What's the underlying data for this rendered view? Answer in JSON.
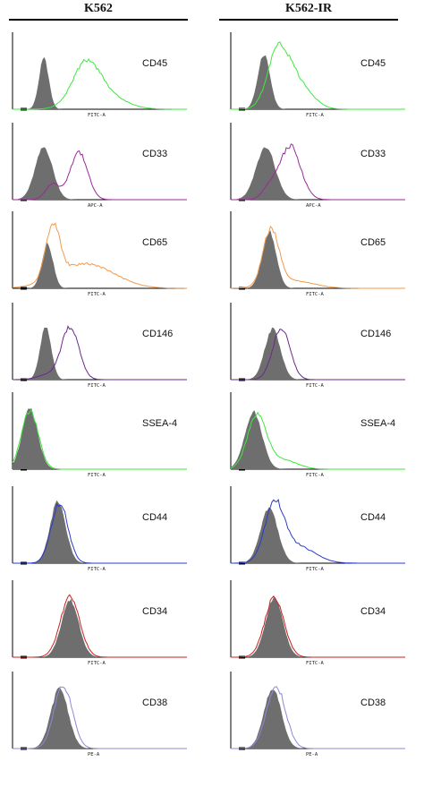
{
  "columns": [
    {
      "label": "K562"
    },
    {
      "label": "K562-IR"
    }
  ],
  "colors": {
    "filled": "#6e6e6e",
    "green": "#3ee83e",
    "magenta": "#9a2a9a",
    "orange": "#f39a4a",
    "purple": "#6a2a8c",
    "blue": "#2b3bc8",
    "red": "#c8201c",
    "lightblue": "#8a8ad8"
  },
  "chart_data": [
    {
      "type": "area",
      "panel": "K562",
      "marker": "CD45",
      "xlabel": "FITC-A",
      "color": "green",
      "filled": {
        "mu": 0.18,
        "sd": 0.028,
        "amp": 0.66
      },
      "overlay": [
        {
          "mu": 0.42,
          "sd": 0.075,
          "amp": 0.46
        },
        {
          "mu": 0.5,
          "sd": 0.12,
          "amp": 0.22
        }
      ]
    },
    {
      "type": "area",
      "panel": "K562",
      "marker": "CD33",
      "xlabel": "APC-A",
      "color": "magenta",
      "filled": {
        "mu": 0.18,
        "sd": 0.05,
        "amp": 0.68
      },
      "overlay": [
        {
          "mu": 0.23,
          "sd": 0.04,
          "amp": 0.2
        },
        {
          "mu": 0.38,
          "sd": 0.05,
          "amp": 0.62
        }
      ]
    },
    {
      "type": "area",
      "panel": "K562",
      "marker": "CD65",
      "xlabel": "FITC-A",
      "color": "orange",
      "filled": {
        "mu": 0.2,
        "sd": 0.032,
        "amp": 0.58
      },
      "overlay": [
        {
          "mu": 0.23,
          "sd": 0.04,
          "amp": 0.7
        },
        {
          "mu": 0.42,
          "sd": 0.16,
          "amp": 0.32
        }
      ]
    },
    {
      "type": "area",
      "panel": "K562",
      "marker": "CD146",
      "xlabel": "FITC-A",
      "color": "purple",
      "filled": {
        "mu": 0.19,
        "sd": 0.032,
        "amp": 0.68
      },
      "overlay": [
        {
          "mu": 0.33,
          "sd": 0.05,
          "amp": 0.68
        },
        {
          "mu": 0.2,
          "sd": 0.06,
          "amp": 0.06
        }
      ]
    },
    {
      "type": "area",
      "panel": "K562",
      "marker": "SSEA-4",
      "xlabel": "FITC-A",
      "color": "green",
      "filled": {
        "mu": 0.1,
        "sd": 0.045,
        "amp": 0.78
      },
      "overlay": [
        {
          "mu": 0.1,
          "sd": 0.048,
          "amp": 0.76
        }
      ]
    },
    {
      "type": "area",
      "panel": "K562",
      "marker": "CD44",
      "xlabel": "FITC-A",
      "color": "blue",
      "filled": {
        "mu": 0.26,
        "sd": 0.045,
        "amp": 0.8
      },
      "overlay": [
        {
          "mu": 0.27,
          "sd": 0.048,
          "amp": 0.78
        }
      ]
    },
    {
      "type": "area",
      "panel": "K562",
      "marker": "CD34",
      "xlabel": "FITC-A",
      "color": "red",
      "filled": {
        "mu": 0.33,
        "sd": 0.05,
        "amp": 0.74
      },
      "overlay": [
        {
          "mu": 0.33,
          "sd": 0.055,
          "amp": 0.8
        }
      ]
    },
    {
      "type": "area",
      "panel": "K562",
      "marker": "CD38",
      "xlabel": "PE-A",
      "color": "lightblue",
      "filled": {
        "mu": 0.27,
        "sd": 0.05,
        "amp": 0.78
      },
      "overlay": [
        {
          "mu": 0.29,
          "sd": 0.052,
          "amp": 0.82
        }
      ]
    },
    {
      "type": "area",
      "panel": "K562-IR",
      "marker": "CD45",
      "xlabel": "FITC-A",
      "color": "green",
      "filled": {
        "mu": 0.19,
        "sd": 0.035,
        "amp": 0.72
      },
      "overlay": [
        {
          "mu": 0.27,
          "sd": 0.06,
          "amp": 0.7
        },
        {
          "mu": 0.38,
          "sd": 0.08,
          "amp": 0.35
        }
      ]
    },
    {
      "type": "area",
      "panel": "K562-IR",
      "marker": "CD33",
      "xlabel": "APC-A",
      "color": "magenta",
      "filled": {
        "mu": 0.2,
        "sd": 0.055,
        "amp": 0.68
      },
      "overlay": [
        {
          "mu": 0.34,
          "sd": 0.06,
          "amp": 0.7
        },
        {
          "mu": 0.22,
          "sd": 0.04,
          "amp": 0.14
        }
      ]
    },
    {
      "type": "area",
      "panel": "K562-IR",
      "marker": "CD65",
      "xlabel": "FITC-A",
      "color": "orange",
      "filled": {
        "mu": 0.22,
        "sd": 0.04,
        "amp": 0.74
      },
      "overlay": [
        {
          "mu": 0.23,
          "sd": 0.045,
          "amp": 0.72
        },
        {
          "mu": 0.35,
          "sd": 0.12,
          "amp": 0.1
        }
      ]
    },
    {
      "type": "area",
      "panel": "K562-IR",
      "marker": "CD146",
      "xlabel": "FITC-A",
      "color": "purple",
      "filled": {
        "mu": 0.24,
        "sd": 0.045,
        "amp": 0.66
      },
      "overlay": [
        {
          "mu": 0.29,
          "sd": 0.05,
          "amp": 0.66
        }
      ]
    },
    {
      "type": "area",
      "panel": "K562-IR",
      "marker": "SSEA-4",
      "xlabel": "FITC-A",
      "color": "green",
      "filled": {
        "mu": 0.13,
        "sd": 0.05,
        "amp": 0.74
      },
      "overlay": [
        {
          "mu": 0.15,
          "sd": 0.055,
          "amp": 0.68
        },
        {
          "mu": 0.3,
          "sd": 0.08,
          "amp": 0.12
        }
      ]
    },
    {
      "type": "area",
      "panel": "K562-IR",
      "marker": "CD44",
      "xlabel": "FITC-A",
      "color": "blue",
      "filled": {
        "mu": 0.22,
        "sd": 0.05,
        "amp": 0.72
      },
      "overlay": [
        {
          "mu": 0.25,
          "sd": 0.055,
          "amp": 0.72
        },
        {
          "mu": 0.38,
          "sd": 0.1,
          "amp": 0.22
        }
      ]
    },
    {
      "type": "area",
      "panel": "K562-IR",
      "marker": "CD34",
      "xlabel": "FITC-A",
      "color": "red",
      "filled": {
        "mu": 0.25,
        "sd": 0.05,
        "amp": 0.76
      },
      "overlay": [
        {
          "mu": 0.25,
          "sd": 0.055,
          "amp": 0.78
        }
      ]
    },
    {
      "type": "area",
      "panel": "K562-IR",
      "marker": "CD38",
      "xlabel": "PE-A",
      "color": "lightblue",
      "filled": {
        "mu": 0.24,
        "sd": 0.05,
        "amp": 0.78
      },
      "overlay": [
        {
          "mu": 0.26,
          "sd": 0.055,
          "amp": 0.8
        }
      ]
    }
  ]
}
